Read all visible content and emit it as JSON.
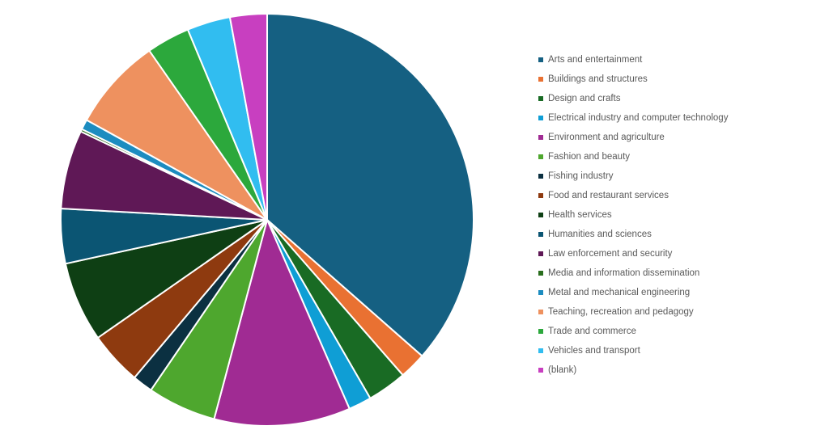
{
  "chart_data": {
    "type": "pie",
    "title": "",
    "legend_position": "right",
    "categories": [
      "Arts and entertainment",
      "Buildings and structures",
      "Design and crafts",
      "Electrical industry and computer technology",
      "Environment and agriculture",
      "Fashion and beauty",
      "Fishing industry",
      "Food and restaurant services",
      "Health services",
      "Humanities and sciences",
      "Law enforcement and security",
      "Media and information dissemination",
      "Metal and mechanical engineering",
      "Teaching, recreation and pedagogy",
      "Trade and commerce",
      "Vehicles and transport",
      "(blank)"
    ],
    "values": [
      36.6,
      2.1,
      3.1,
      1.8,
      10.7,
      5.4,
      1.6,
      4.2,
      6.3,
      4.3,
      6.2,
      0.2,
      0.8,
      7.3,
      3.4,
      3.4,
      2.9
    ],
    "colors": [
      "#156082",
      "#E97132",
      "#196B24",
      "#0F9ED5",
      "#A02B93",
      "#4EA72E",
      "#0B3041",
      "#8E3A0F",
      "#0E3F14",
      "#0B5573",
      "#5F1856",
      "#2A6E1E",
      "#1C8CC0",
      "#EE915F",
      "#2CA83C",
      "#31BDF0",
      "#C83FC0"
    ]
  }
}
